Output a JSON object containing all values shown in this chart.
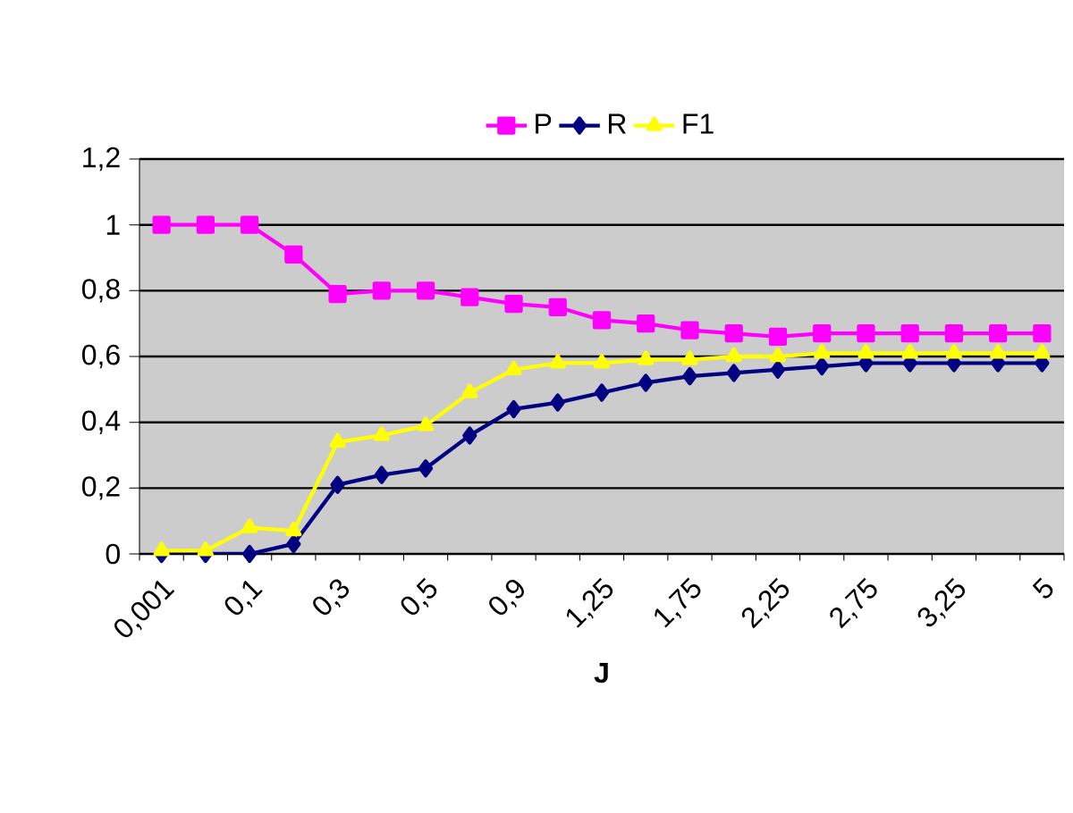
{
  "chart_data": {
    "type": "line",
    "xlabel": "J",
    "categories": [
      "0,001",
      null,
      "0,1",
      null,
      "0,3",
      null,
      "0,5",
      null,
      "0,9",
      null,
      "1,25",
      null,
      "1,75",
      null,
      "2,25",
      null,
      "2,75",
      null,
      "3,25",
      null,
      "5"
    ],
    "series": [
      {
        "name": "P",
        "color": "#ff00ff",
        "marker": "square",
        "values": [
          1.0,
          1.0,
          1.0,
          0.91,
          0.79,
          0.8,
          0.8,
          0.78,
          0.76,
          0.75,
          0.71,
          0.7,
          0.68,
          0.67,
          0.66,
          0.67,
          0.67,
          0.67,
          0.67,
          0.67,
          0.67
        ]
      },
      {
        "name": "R",
        "color": "#000080",
        "marker": "diamond",
        "values": [
          0,
          0,
          0,
          0.03,
          0.21,
          0.24,
          0.26,
          0.36,
          0.44,
          0.46,
          0.49,
          0.52,
          0.54,
          0.55,
          0.56,
          0.57,
          0.58,
          0.58,
          0.58,
          0.58,
          0.58
        ]
      },
      {
        "name": "F1",
        "color": "#ffff00",
        "marker": "triangle",
        "values": [
          0.01,
          0.01,
          0.08,
          0.07,
          0.34,
          0.36,
          0.39,
          0.49,
          0.56,
          0.58,
          0.58,
          0.59,
          0.59,
          0.6,
          0.6,
          0.61,
          0.61,
          0.61,
          0.61,
          0.61,
          0.61
        ]
      }
    ],
    "ylim": [
      0,
      1.2
    ],
    "yticks": [
      0,
      {
        "value": 0.2,
        "label": "0,2"
      },
      {
        "value": 0.4,
        "label": "0,4"
      },
      {
        "value": 0.6,
        "label": "0,6"
      },
      {
        "value": 0.8,
        "label": "0,8"
      },
      1,
      {
        "value": 1.2,
        "label": "1,2"
      }
    ],
    "grid": "y",
    "legend": "top"
  }
}
